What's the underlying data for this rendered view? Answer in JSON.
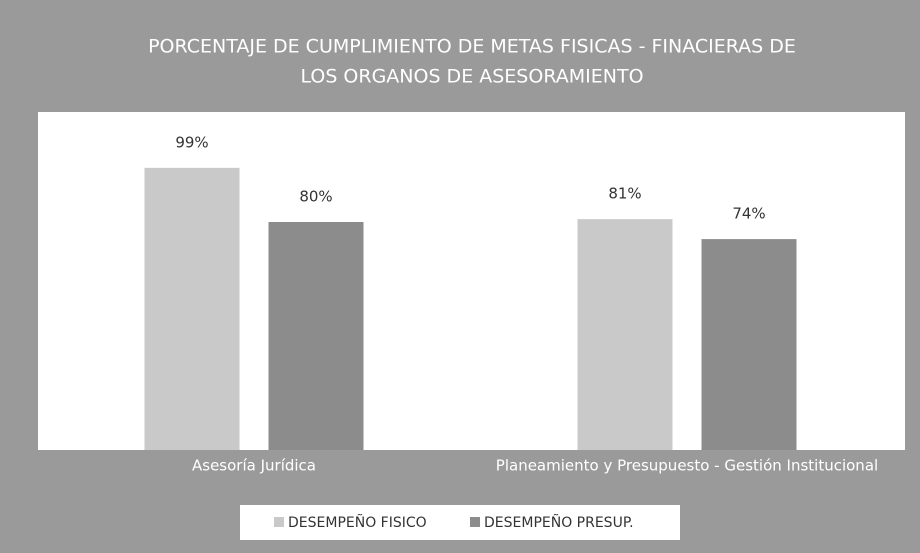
{
  "chart_data": {
    "type": "bar",
    "title": [
      "PORCENTAJE DE CUMPLIMIENTO DE METAS FISICAS - FINACIERAS DE",
      "LOS ORGANOS DE ASESORAMIENTO"
    ],
    "categories": [
      "Asesoría Jurídica",
      "Planeamiento y Presupuesto - Gestión Institucional"
    ],
    "series": [
      {
        "name": "DESEMPEÑO FISICO",
        "color": "#c9c9c9",
        "values": [
          99,
          81
        ],
        "value_labels": [
          "99%",
          "81%"
        ]
      },
      {
        "name": "DESEMPEÑO PRESUP.",
        "color": "#8c8c8c",
        "values": [
          80,
          74
        ],
        "value_labels": [
          "80%",
          "74%"
        ]
      }
    ],
    "legend": "bottom"
  }
}
